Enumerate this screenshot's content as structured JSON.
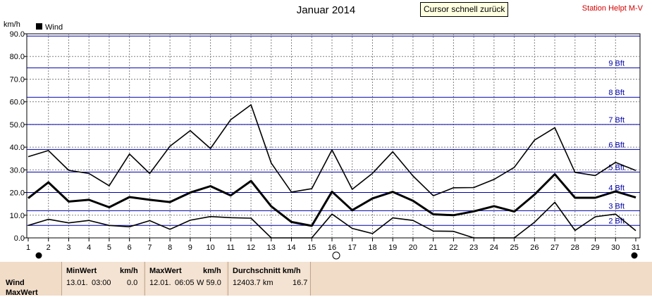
{
  "title": "Januar 2014",
  "station": "Station Helpt M-V",
  "tooltip": "Cursor schnell zurück",
  "chart_data": {
    "type": "line",
    "ylabel": "km/h",
    "legend": "Wind",
    "legend_position": "top-left",
    "ylim": [
      0,
      90
    ],
    "y_ticks": [
      "0.0",
      "10.0",
      "20.0",
      "30.0",
      "40.0",
      "50.0",
      "60.0",
      "70.0",
      "80.0",
      "90.0"
    ],
    "x": [
      1,
      2,
      3,
      4,
      5,
      6,
      7,
      8,
      9,
      10,
      11,
      12,
      13,
      14,
      15,
      16,
      17,
      18,
      19,
      20,
      21,
      22,
      23,
      24,
      25,
      26,
      27,
      28,
      29,
      30,
      31
    ],
    "grid": true,
    "series": [
      {
        "name": "max",
        "values": [
          35.8,
          38.5,
          29.8,
          28.4,
          23.0,
          37.0,
          28.4,
          40.4,
          47.3,
          39.4,
          52.1,
          58.7,
          33.0,
          20.2,
          21.7,
          38.8,
          21.4,
          28.5,
          38.0,
          27.3,
          18.6,
          22.1,
          22.2,
          25.8,
          31.1,
          43.1,
          48.6,
          28.9,
          27.5,
          33.3,
          29.7
        ]
      },
      {
        "name": "avg",
        "values": [
          17.5,
          24.5,
          16.0,
          16.8,
          13.5,
          18.0,
          16.8,
          15.8,
          20.0,
          22.8,
          18.7,
          25.1,
          13.9,
          7.0,
          5.3,
          20.4,
          12.2,
          17.4,
          20.3,
          16.4,
          10.4,
          10.0,
          11.7,
          14.0,
          11.6,
          19.1,
          28.1,
          17.7,
          17.7,
          20.5,
          17.8
        ]
      },
      {
        "name": "min",
        "values": [
          5.5,
          8.2,
          6.6,
          7.7,
          5.5,
          4.9,
          7.6,
          3.8,
          7.8,
          9.4,
          8.9,
          8.7,
          0,
          0,
          0,
          10.5,
          4.2,
          1.9,
          8.8,
          7.7,
          3.0,
          2.9,
          0,
          0,
          0,
          6.9,
          15.7,
          3.3,
          9.3,
          10.5,
          3.2
        ]
      }
    ],
    "bft_lines": [
      {
        "label": "2 Bft",
        "value": 5.5
      },
      {
        "label": "3 Bft",
        "value": 12
      },
      {
        "label": "4 Bft",
        "value": 20
      },
      {
        "label": "5 Bft",
        "value": 29
      },
      {
        "label": "6 Bft",
        "value": 39
      },
      {
        "label": "7 Bft",
        "value": 50
      },
      {
        "label": "8 Bft",
        "value": 62
      },
      {
        "label": "9 Bft",
        "value": 75
      },
      {
        "label": "",
        "value": 89
      }
    ]
  },
  "panel": {
    "row_wind": "Wind",
    "row_maxwert": "MaxWert",
    "min_header": "MinWert",
    "min_unit": "km/h",
    "min_date": "13.01.",
    "min_time": "03:00",
    "min_value": "0.0",
    "max_header": "MaxWert",
    "max_unit": "km/h",
    "max_date": "12.01.",
    "max_time": "06:05",
    "max_value": "W 59.0",
    "avg_header": "Durchschnitt km/h",
    "avg_distance": "12403.7 km",
    "avg_value": "16.7"
  }
}
